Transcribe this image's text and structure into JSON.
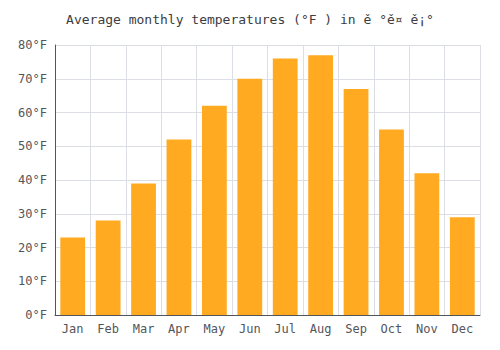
{
  "chart_data": {
    "type": "bar",
    "title": "Average monthly temperatures (°F ) in ě °ě¤ ě¡°",
    "categories": [
      "Jan",
      "Feb",
      "Mar",
      "Apr",
      "May",
      "Jun",
      "Jul",
      "Aug",
      "Sep",
      "Oct",
      "Nov",
      "Dec"
    ],
    "values": [
      23,
      28,
      39,
      52,
      62,
      70,
      76,
      77,
      67,
      55,
      42,
      29
    ],
    "color": "#FFAA20",
    "ylim": [
      0,
      80
    ],
    "yticks": [
      {
        "value": 0,
        "label": "0°F"
      },
      {
        "value": 10,
        "label": "10°F"
      },
      {
        "value": 20,
        "label": "20°F"
      },
      {
        "value": 30,
        "label": "30°F"
      },
      {
        "value": 40,
        "label": "40°F"
      },
      {
        "value": 50,
        "label": "50°F"
      },
      {
        "value": 60,
        "label": "60°F"
      },
      {
        "value": 70,
        "label": "70°F"
      },
      {
        "value": 80,
        "label": "80°F"
      }
    ],
    "grid": true
  }
}
